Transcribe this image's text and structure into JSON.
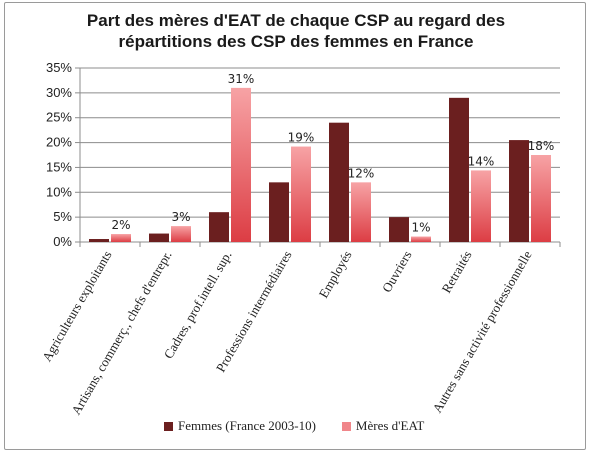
{
  "chart_data": {
    "type": "bar",
    "title_line1": "Part des mères d'EAT de chaque CSP au regard des",
    "title_line2": "répartitions des CSP des femmes en France",
    "categories": [
      "Agriculteurs exploitants",
      "Artisans, commerç., chefs d'entrepr.",
      "Cadres, prof.intell. sup.",
      "Professions intermédiaires",
      "Employés",
      "Ouvriers",
      "Retraités",
      "Autres sans activité professionnelle"
    ],
    "series": [
      {
        "name": "Femmes (France 2003-10)",
        "values": [
          0.6,
          1.7,
          6.0,
          12.0,
          24.0,
          5.0,
          29.0,
          20.5
        ],
        "color": "#6b1f1f"
      },
      {
        "name": "Mères d'EAT",
        "values": [
          1.6,
          3.2,
          31.0,
          19.2,
          12.0,
          1.1,
          14.4,
          17.5
        ],
        "labels": [
          "2%",
          "3%",
          "31%",
          "19%",
          "12%",
          "1%",
          "14%",
          "18%"
        ],
        "color": "#f0868a"
      }
    ],
    "yticks": [
      "0%",
      "5%",
      "10%",
      "15%",
      "20%",
      "25%",
      "30%",
      "35%"
    ],
    "ylim": [
      0,
      35
    ],
    "grid": true,
    "legend": "bottom"
  }
}
